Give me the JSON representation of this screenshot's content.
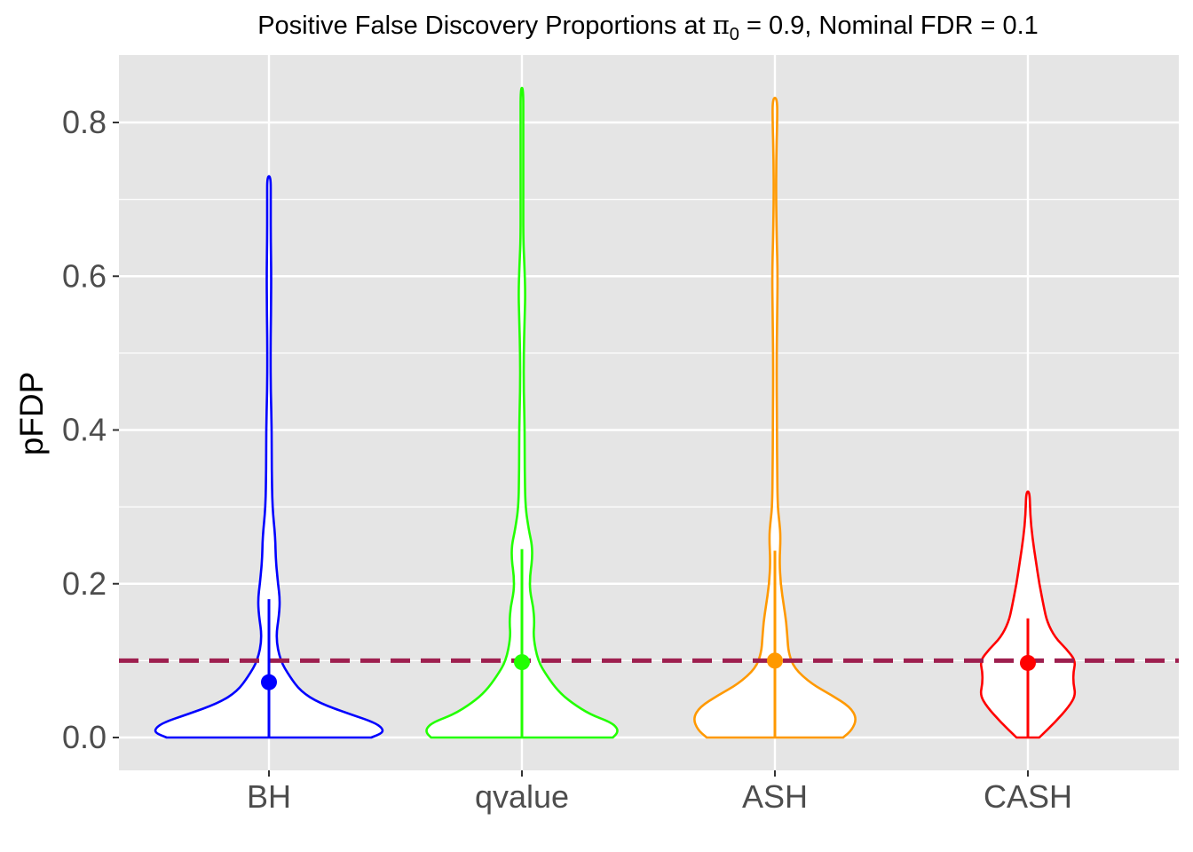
{
  "chart_data": {
    "type": "violin",
    "title_prefix": "Positive False Discovery Proportions at ",
    "title_symbol": "π",
    "title_subscript": "0",
    "title_suffix": " = 0.9, Nominal FDR = 0.1",
    "xlabel": "",
    "ylabel": "pFDP",
    "ylim": [
      -0.04,
      0.88
    ],
    "yticks": [
      0.0,
      0.2,
      0.4,
      0.6,
      0.8
    ],
    "ytick_labels": [
      "0.0",
      "0.2",
      "0.4",
      "0.6",
      "0.8"
    ],
    "grid": true,
    "legend": "none",
    "reference_line": {
      "y": 0.1,
      "style": "dashed",
      "color": "#9e1f4f"
    },
    "categories": [
      "BH",
      "qvalue",
      "ASH",
      "CASH"
    ],
    "series": [
      {
        "category": "BH",
        "color": "#0000ff",
        "mean": 0.072,
        "interval": [
          0.0,
          0.18
        ],
        "density": [
          [
            0.0,
            0.45
          ],
          [
            0.006,
            0.5
          ],
          [
            0.012,
            0.5
          ],
          [
            0.02,
            0.46
          ],
          [
            0.03,
            0.36
          ],
          [
            0.045,
            0.22
          ],
          [
            0.06,
            0.14
          ],
          [
            0.08,
            0.09
          ],
          [
            0.1,
            0.05
          ],
          [
            0.13,
            0.03
          ],
          [
            0.16,
            0.045
          ],
          [
            0.18,
            0.048
          ],
          [
            0.2,
            0.04
          ],
          [
            0.23,
            0.03
          ],
          [
            0.26,
            0.028
          ],
          [
            0.3,
            0.015
          ],
          [
            0.35,
            0.012
          ],
          [
            0.4,
            0.012
          ],
          [
            0.45,
            0.008
          ],
          [
            0.5,
            0.007
          ],
          [
            0.55,
            0.009
          ],
          [
            0.6,
            0.01
          ],
          [
            0.65,
            0.008
          ],
          [
            0.7,
            0.008
          ],
          [
            0.73,
            0.008
          ]
        ]
      },
      {
        "category": "qvalue",
        "color": "#22ff00",
        "mean": 0.098,
        "interval": [
          0.0,
          0.245
        ],
        "density": [
          [
            0.0,
            0.4
          ],
          [
            0.006,
            0.42
          ],
          [
            0.012,
            0.42
          ],
          [
            0.02,
            0.39
          ],
          [
            0.03,
            0.3
          ],
          [
            0.045,
            0.22
          ],
          [
            0.06,
            0.16
          ],
          [
            0.08,
            0.11
          ],
          [
            0.1,
            0.07
          ],
          [
            0.13,
            0.05
          ],
          [
            0.15,
            0.055
          ],
          [
            0.17,
            0.05
          ],
          [
            0.19,
            0.035
          ],
          [
            0.21,
            0.035
          ],
          [
            0.23,
            0.045
          ],
          [
            0.25,
            0.045
          ],
          [
            0.27,
            0.03
          ],
          [
            0.3,
            0.015
          ],
          [
            0.35,
            0.012
          ],
          [
            0.4,
            0.012
          ],
          [
            0.45,
            0.008
          ],
          [
            0.5,
            0.008
          ],
          [
            0.55,
            0.012
          ],
          [
            0.58,
            0.015
          ],
          [
            0.62,
            0.01
          ],
          [
            0.65,
            0.006
          ],
          [
            0.7,
            0.006
          ],
          [
            0.75,
            0.006
          ],
          [
            0.8,
            0.006
          ],
          [
            0.845,
            0.006
          ]
        ]
      },
      {
        "category": "ASH",
        "color": "#ff9900",
        "mean": 0.1,
        "interval": [
          0.0,
          0.243
        ],
        "density": [
          [
            0.0,
            0.3
          ],
          [
            0.01,
            0.34
          ],
          [
            0.025,
            0.36
          ],
          [
            0.04,
            0.33
          ],
          [
            0.055,
            0.25
          ],
          [
            0.07,
            0.16
          ],
          [
            0.09,
            0.085
          ],
          [
            0.11,
            0.06
          ],
          [
            0.13,
            0.055
          ],
          [
            0.15,
            0.05
          ],
          [
            0.17,
            0.04
          ],
          [
            0.2,
            0.025
          ],
          [
            0.23,
            0.02
          ],
          [
            0.26,
            0.025
          ],
          [
            0.28,
            0.02
          ],
          [
            0.3,
            0.012
          ],
          [
            0.35,
            0.01
          ],
          [
            0.4,
            0.009
          ],
          [
            0.45,
            0.008
          ],
          [
            0.5,
            0.008
          ],
          [
            0.55,
            0.01
          ],
          [
            0.6,
            0.012
          ],
          [
            0.65,
            0.008
          ],
          [
            0.7,
            0.005
          ],
          [
            0.75,
            0.006
          ],
          [
            0.8,
            0.01
          ],
          [
            0.832,
            0.01
          ]
        ]
      },
      {
        "category": "CASH",
        "color": "#ff0000",
        "mean": 0.097,
        "interval": [
          0.0,
          0.155
        ],
        "density": [
          [
            0.0,
            0.05
          ],
          [
            0.02,
            0.12
          ],
          [
            0.04,
            0.18
          ],
          [
            0.055,
            0.21
          ],
          [
            0.07,
            0.2
          ],
          [
            0.085,
            0.2
          ],
          [
            0.1,
            0.21
          ],
          [
            0.115,
            0.17
          ],
          [
            0.13,
            0.12
          ],
          [
            0.15,
            0.085
          ],
          [
            0.17,
            0.07
          ],
          [
            0.2,
            0.05
          ],
          [
            0.23,
            0.035
          ],
          [
            0.26,
            0.02
          ],
          [
            0.29,
            0.01
          ],
          [
            0.32,
            0.008
          ]
        ]
      }
    ]
  }
}
